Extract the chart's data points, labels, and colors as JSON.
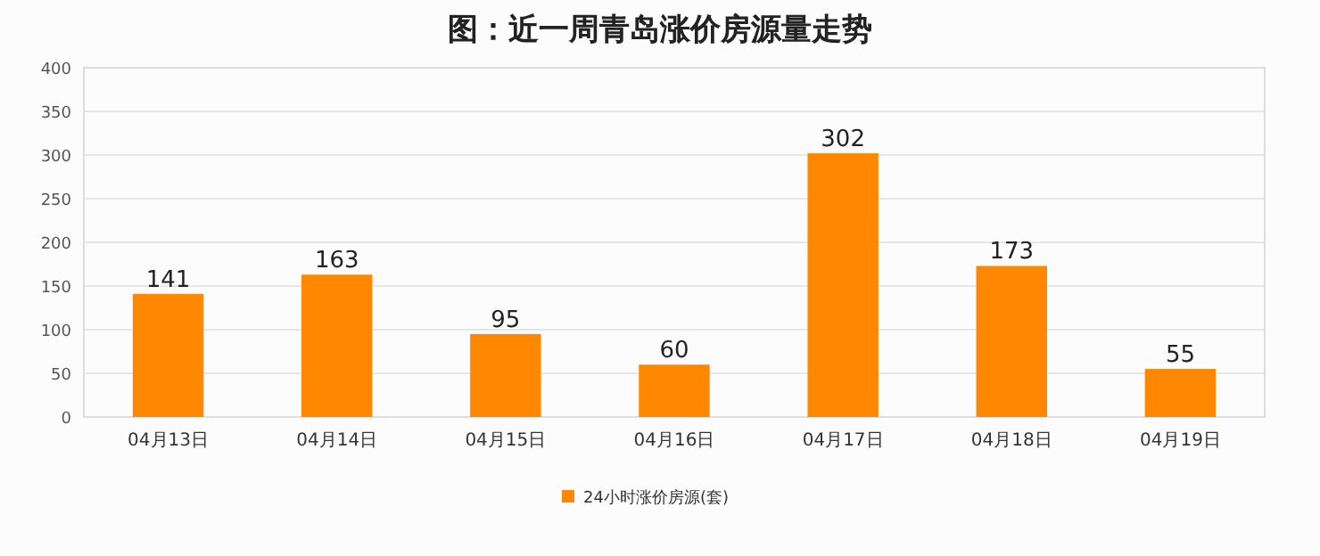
{
  "chart_data": {
    "type": "bar",
    "title": "图：近一周青岛涨价房源量走势",
    "categories": [
      "04月13日",
      "04月14日",
      "04月15日",
      "04月16日",
      "04月17日",
      "04月18日",
      "04月19日"
    ],
    "series": [
      {
        "name": "24小时涨价房源(套)",
        "color": "#ff8800",
        "values": [
          141,
          163,
          95,
          60,
          302,
          173,
          55
        ]
      }
    ],
    "ylim": [
      0,
      400
    ],
    "yticks": [
      0,
      50,
      100,
      150,
      200,
      250,
      300,
      350,
      400
    ],
    "grid": "y",
    "data_labels": true,
    "legend": "bottom"
  }
}
